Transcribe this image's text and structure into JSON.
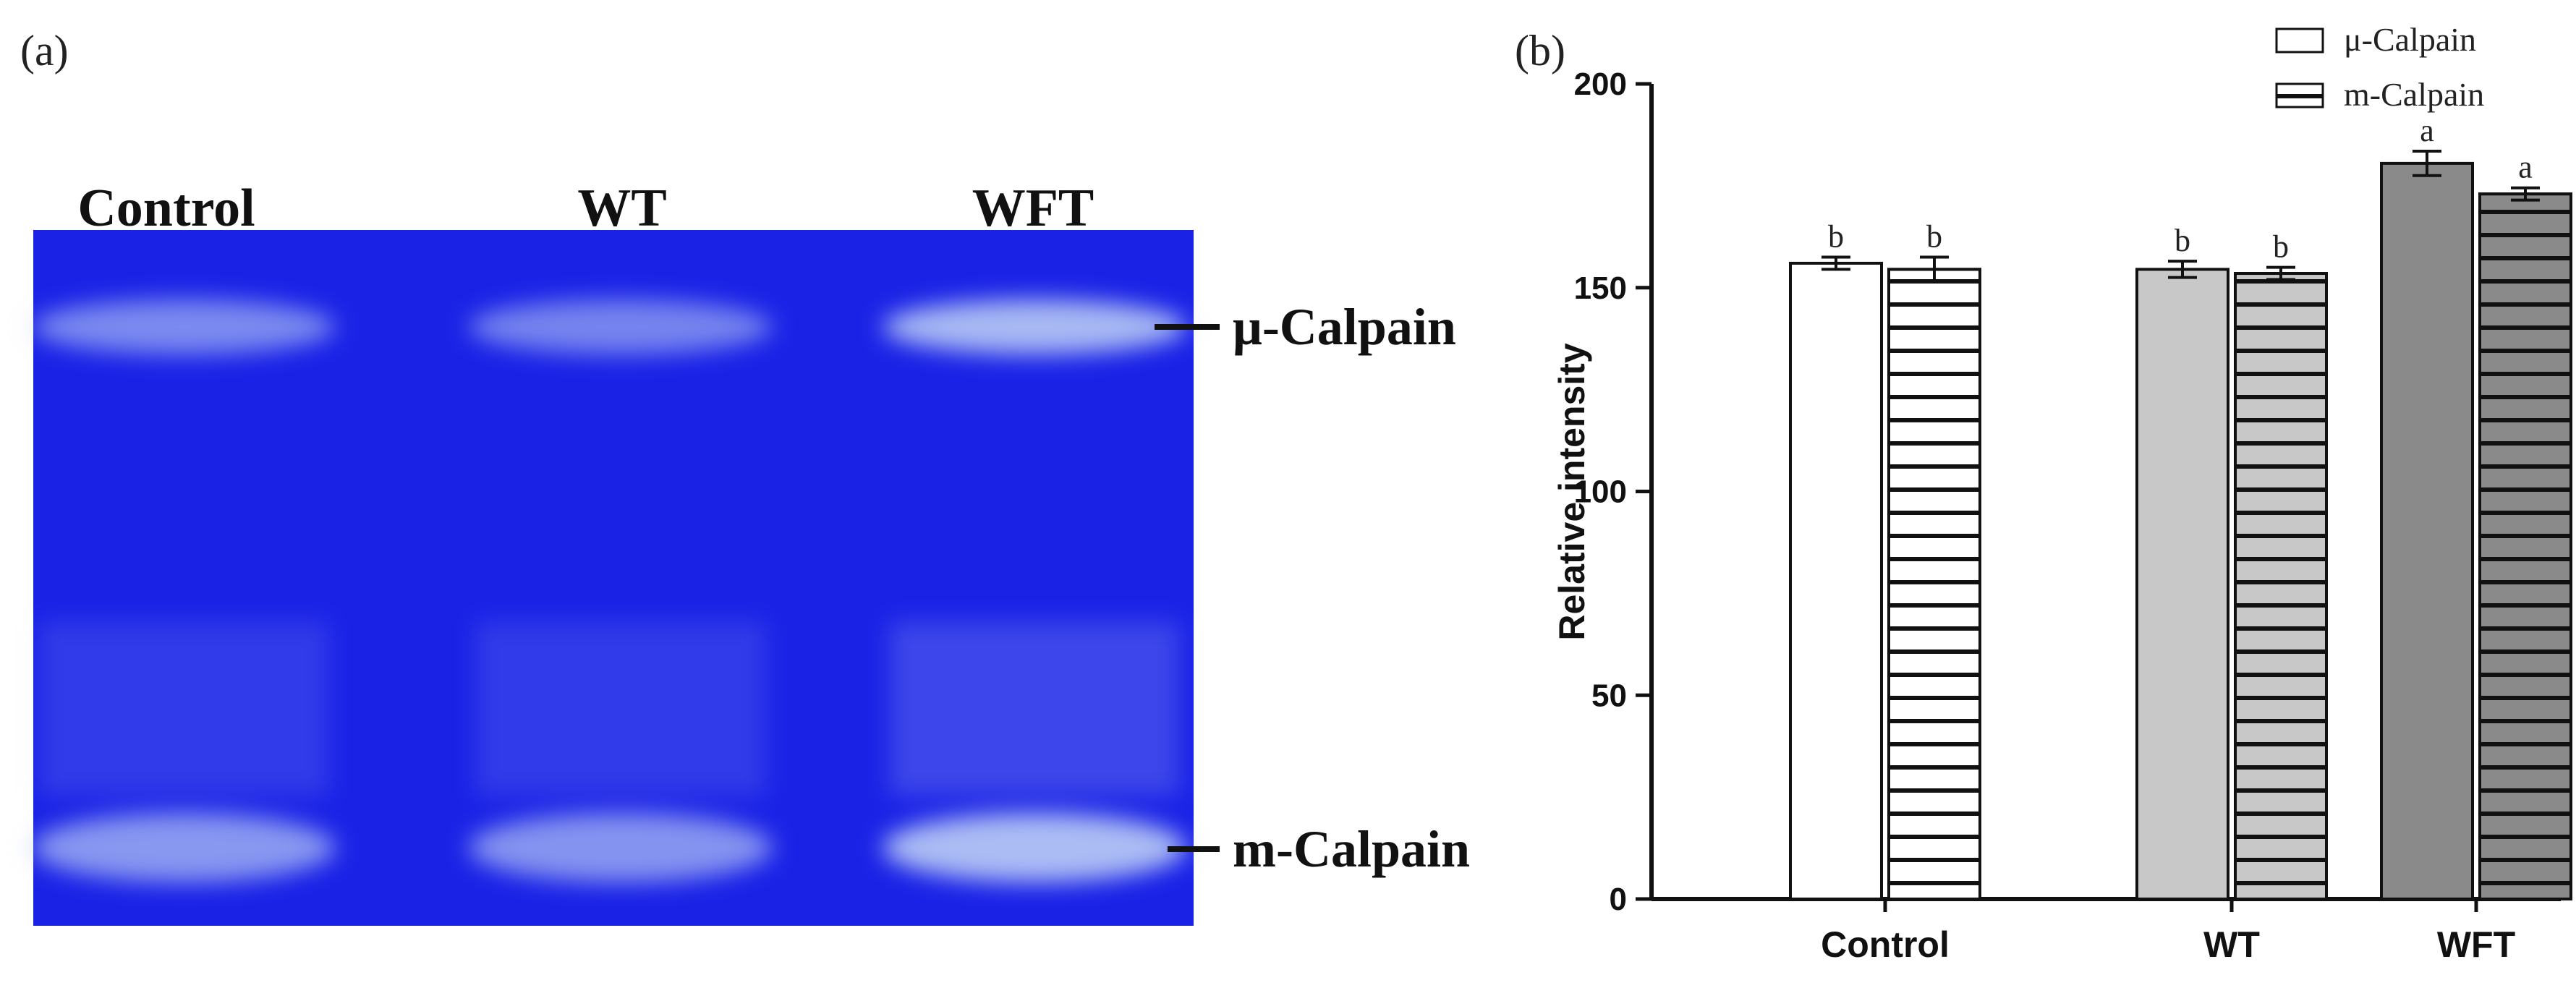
{
  "gel": {
    "panel_label": "(a)",
    "lanes": [
      "Control",
      "WT",
      "WFT"
    ],
    "bands": [
      "μ-Calpain",
      "m-Calpain"
    ],
    "colors": {
      "background": "#1a22e6",
      "band": "#b7c9f5"
    },
    "band_intensity": {
      "μ-Calpain": [
        0.62,
        0.58,
        0.9
      ],
      "m-Calpain": [
        0.7,
        0.68,
        0.92
      ]
    }
  },
  "chart_data": {
    "type": "bar",
    "panel_label": "(b)",
    "categories": [
      "Control",
      "WT",
      "WFT"
    ],
    "series": [
      {
        "name": "μ-Calpain",
        "values": [
          156,
          154.5,
          180.5
        ],
        "errors": [
          1.5,
          2,
          3
        ],
        "sig": [
          "b",
          "b",
          "a"
        ]
      },
      {
        "name": "m-Calpain",
        "values": [
          154.5,
          153.5,
          173
        ],
        "errors": [
          3,
          1.5,
          1.5
        ],
        "sig": [
          "b",
          "b",
          "a"
        ]
      }
    ],
    "series_fills": [
      [
        "#ffffff",
        "#c8c8c8",
        "#8a8a8a"
      ],
      [
        "#ffffff",
        "#c8c8c8",
        "#8a8a8a"
      ]
    ],
    "series_hatch": [
      "none",
      "horizontal"
    ],
    "xlabel": "",
    "ylabel": "Relative intensity",
    "ylim": [
      0,
      200
    ],
    "yticks": [
      0,
      50,
      100,
      150,
      200
    ],
    "grid": false,
    "legend_position": "top-right"
  }
}
